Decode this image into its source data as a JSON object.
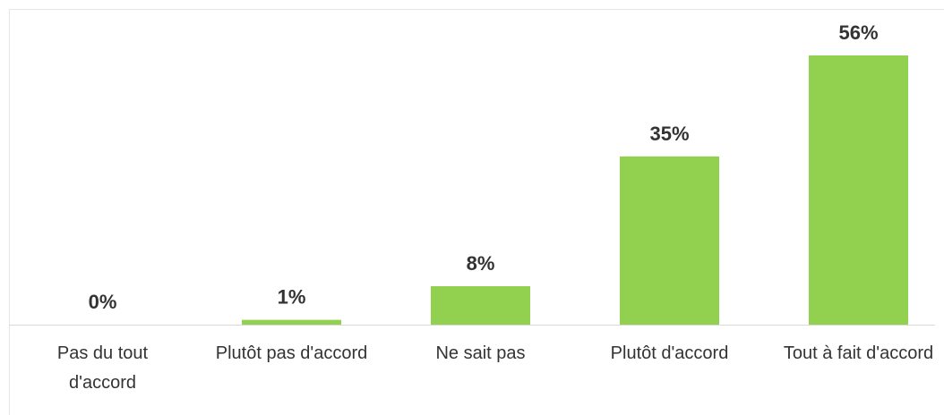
{
  "chart_data": {
    "type": "bar",
    "categories": [
      "Pas du tout d'accord",
      "Plutôt pas d'accord",
      "Ne sait pas",
      "Plutôt d'accord",
      "Tout à fait d'accord"
    ],
    "values": [
      0,
      1,
      8,
      35,
      56
    ],
    "value_labels": [
      "0%",
      "1%",
      "8%",
      "35%",
      "56%"
    ],
    "color": "#92d050"
  }
}
